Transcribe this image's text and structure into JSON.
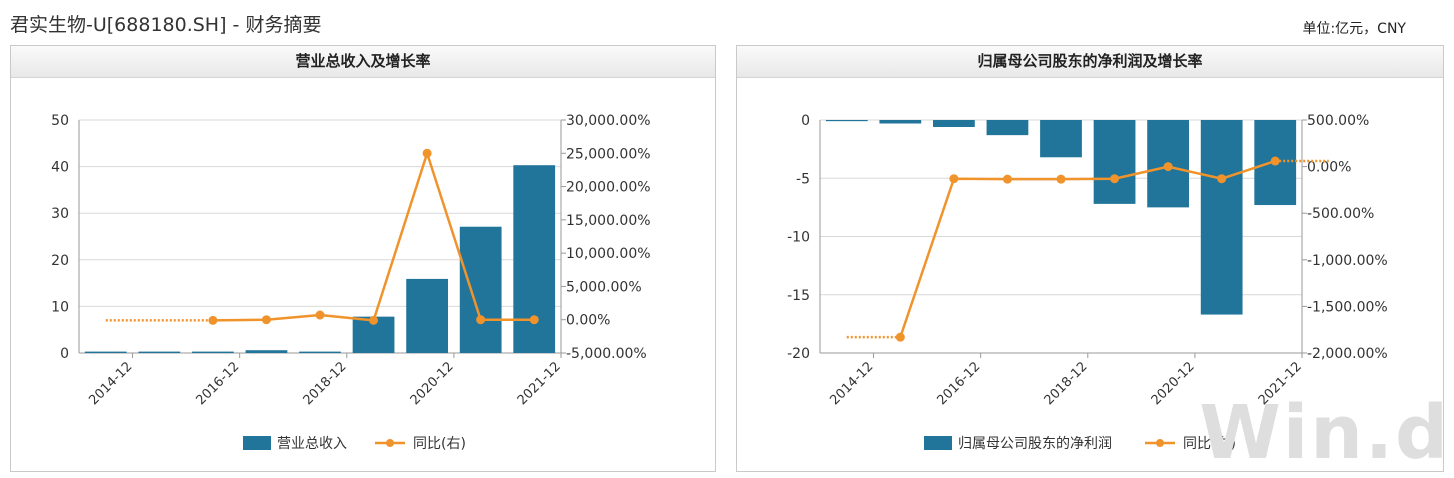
{
  "page": {
    "title": "君实生物-U[688180.SH] - 财务摘要",
    "unit": "单位:亿元，CNY",
    "watermark": "Win.d"
  },
  "colors": {
    "bar": "#21759b",
    "line": "#f0932b",
    "grid": "#d9d9d9",
    "axis": "#999999"
  },
  "chart_data": [
    {
      "type": "bar",
      "title": "营业总收入及增长率",
      "x_ticks": [
        "2014-12",
        "2016-12",
        "2018-12",
        "2020-12",
        "2021-12"
      ],
      "y_left": {
        "min": 0,
        "max": 50,
        "ticks": [
          "0",
          "10",
          "20",
          "30",
          "40",
          "50"
        ]
      },
      "y_right": {
        "min": -5000,
        "max": 30000,
        "ticks": [
          "-5,000.00%",
          "0.00%",
          "5,000.00%",
          "10,000.00%",
          "15,000.00%",
          "20,000.00%",
          "25,000.00%",
          "30,000.00%"
        ]
      },
      "series": [
        {
          "name": "营业总收入",
          "kind": "bar",
          "axis": "left",
          "values": [
            0.3,
            0.3,
            0.3,
            0.6,
            0.3,
            7.8,
            15.9,
            27.1,
            40.3
          ]
        },
        {
          "name": "同比(右)",
          "kind": "line",
          "axis": "right",
          "values": [
            null,
            null,
            -100,
            0,
            700,
            -100,
            25000,
            0,
            0
          ]
        }
      ],
      "legend": [
        "营业总收入",
        "同比(右)"
      ]
    },
    {
      "type": "bar",
      "title": "归属母公司股东的净利润及增长率",
      "x_ticks": [
        "2014-12",
        "2016-12",
        "2018-12",
        "2020-12",
        "2021-12"
      ],
      "y_left": {
        "min": -20,
        "max": 0,
        "ticks": [
          "-20",
          "-15",
          "-10",
          "-5",
          "0"
        ]
      },
      "y_right": {
        "min": -2000,
        "max": 500,
        "ticks": [
          "-2,000.00%",
          "-1,500.00%",
          "-1,000.00%",
          "-500.00%",
          "0.00%",
          "500.00%"
        ]
      },
      "series": [
        {
          "name": "归属母公司股东的净利润",
          "kind": "bar",
          "axis": "left",
          "values": [
            -0.1,
            -0.3,
            -0.6,
            -1.3,
            -3.2,
            -7.2,
            -7.5,
            -16.7,
            -7.3
          ]
        },
        {
          "name": "同比(右)",
          "kind": "line",
          "axis": "right",
          "values": [
            null,
            -1830,
            -130,
            -135,
            -135,
            -130,
            0,
            -130,
            60
          ]
        }
      ],
      "legend": [
        "归属母公司股东的净利润",
        "同比(右)"
      ]
    }
  ]
}
